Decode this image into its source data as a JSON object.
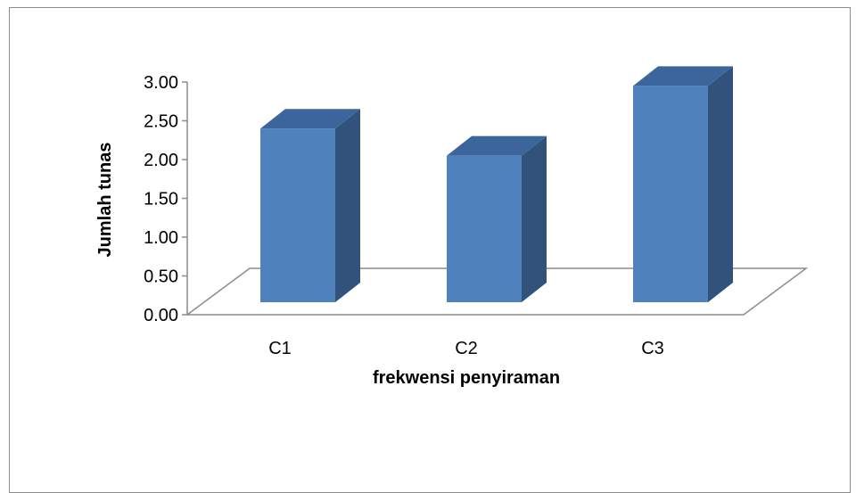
{
  "chart_data": {
    "type": "bar",
    "categories": [
      "C1",
      "C2",
      "C3"
    ],
    "values": [
      2.4,
      2.05,
      2.95
    ],
    "ylim": [
      0,
      3
    ],
    "yticks": [
      "0.00",
      "0.50",
      "1.00",
      "1.50",
      "2.00",
      "2.50",
      "3.00"
    ],
    "xlabel": "frekwensi penyiraman",
    "ylabel": "Jumlah tunas",
    "grid": false,
    "style": "3d-column",
    "colors": {
      "front": "#4f81bd",
      "side": "#31527a",
      "top": "#3c659b",
      "floor": "#8c8c8c"
    }
  }
}
